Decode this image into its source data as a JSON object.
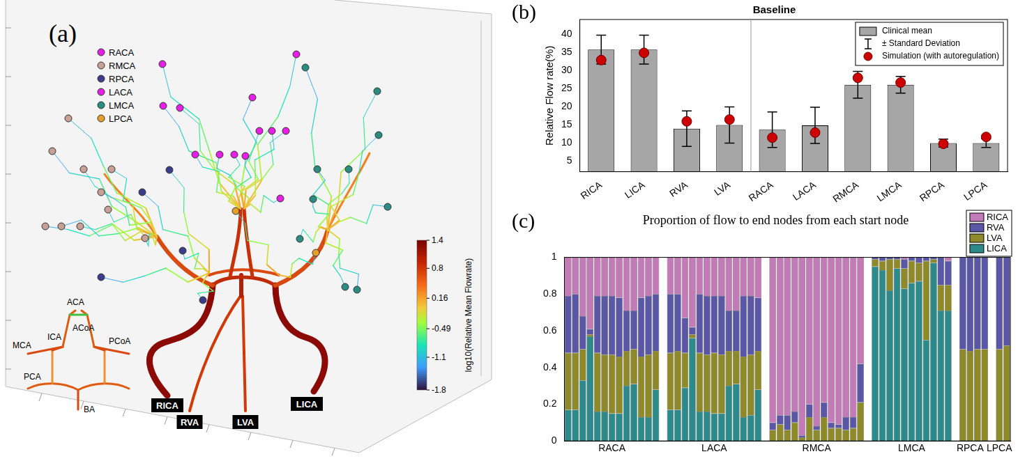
{
  "diagram": {
    "panel_label": "(a)",
    "legend": [
      {
        "name": "RACA",
        "color": "#e61ee6"
      },
      {
        "name": "RMCA",
        "color": "#c8a096"
      },
      {
        "name": "RPCA",
        "color": "#3c3c8c"
      },
      {
        "name": "LACA",
        "color": "#e61ee6"
      },
      {
        "name": "LMCA",
        "color": "#2a8c82"
      },
      {
        "name": "LPCA",
        "color": "#e6a02a"
      }
    ],
    "inlets": [
      "RICA",
      "RVA",
      "LVA",
      "LICA"
    ],
    "schematic_labels": [
      "ACA",
      "ACoA",
      "MCA",
      "ICA",
      "PCoA",
      "PCA",
      "BA"
    ],
    "colorbar": {
      "label": "log10(Relative Mean Flowrate)",
      "range": [
        -1.8,
        1.4
      ],
      "ticks": [
        1.4,
        0.8,
        0.16,
        -0.49,
        -1.1,
        -1.8
      ]
    }
  },
  "chart_data": [
    {
      "type": "bar",
      "panel_label": "(b)",
      "title": "Baseline",
      "y_label": "Relative Flow rate(%)",
      "categories": [
        "RICA",
        "LICA",
        "RVA",
        "LVA",
        "RACA",
        "LACA",
        "RMCA",
        "LMCA",
        "RPCA",
        "LPCA"
      ],
      "series": [
        {
          "name": "Clinical mean",
          "type": "bar",
          "color": "#a6a6a6",
          "values": [
            35.7,
            35.7,
            13.9,
            14.9,
            13.6,
            14.8,
            26.0,
            26.0,
            9.9,
            9.9
          ],
          "error_name": "± Standard Deviation",
          "errors": [
            4.0,
            4.0,
            4.9,
            5.0,
            4.9,
            5.0,
            3.7,
            2.3,
            1.1,
            1.2
          ]
        },
        {
          "name": "Simulation (with autoregulation)",
          "type": "scatter",
          "marker": "circle",
          "color": "#cc0000",
          "values": [
            32.8,
            34.8,
            15.9,
            16.4,
            11.4,
            12.8,
            27.9,
            26.6,
            9.7,
            11.6
          ]
        }
      ],
      "ylim": [
        2,
        44
      ],
      "yticks": [
        5,
        10,
        15,
        20,
        25,
        30,
        35,
        40
      ],
      "grid": false,
      "legend": "upper right"
    },
    {
      "type": "bar",
      "panel_label": "(c)",
      "title": "Proportion of flow to end nodes from each start node",
      "stacked": true,
      "categories": [
        "RACA",
        "LACA",
        "RMCA",
        "LMCA",
        "RPCA",
        "LPCA"
      ],
      "series": [
        {
          "name": "RICA",
          "color": "#c27bb6",
          "values": [
            [
              0.21,
              0.2,
              0.32,
              0.39,
              0.21,
              0.21,
              0.21,
              0.22,
              0.29,
              0.29,
              0.22,
              0.21,
              0.2
            ],
            [
              0.2,
              0.2,
              0.33,
              0.38,
              0.2,
              0.21,
              0.21,
              0.21,
              0.29,
              0.29,
              0.21,
              0.21,
              0.22
            ],
            [
              0.9,
              0.86,
              0.86,
              0.84,
              0.97,
              0.8,
              0.92,
              0.79,
              0.9,
              0.91,
              0.87,
              0.87,
              0.58
            ],
            [
              0,
              0,
              0,
              0,
              0.01,
              0,
              0,
              0,
              0,
              0,
              0.02
            ],
            [
              0,
              0,
              0,
              0
            ],
            [
              0,
              0
            ]
          ]
        },
        {
          "name": "RVA",
          "color": "#5957a6",
          "values": [
            [
              0.31,
              0.32,
              0.18,
              0.03,
              0.31,
              0.32,
              0.32,
              0.32,
              0.22,
              0.21,
              0.32,
              0.32,
              0.31
            ],
            [
              0.32,
              0.31,
              0.19,
              0.04,
              0.32,
              0.32,
              0.31,
              0.32,
              0.22,
              0.22,
              0.33,
              0.32,
              0.29
            ],
            [
              0.04,
              0.05,
              0.08,
              0.06,
              0.01,
              0.07,
              0.02,
              0.08,
              0.03,
              0.02,
              0.07,
              0.06,
              0.21
            ],
            [
              0.01,
              0.02,
              0.01,
              0.01,
              0.05,
              0.02,
              0.03,
              0.02,
              0.01,
              0.15,
              0.13
            ],
            [
              0.5,
              0.51,
              0.5,
              0.5
            ],
            [
              0.5,
              0.48
            ]
          ]
        },
        {
          "name": "LVA",
          "color": "#8e8a2a",
          "values": [
            [
              0.31,
              0.31,
              0.17,
              0.01,
              0.32,
              0.31,
              0.32,
              0.31,
              0.19,
              0.19,
              0.33,
              0.34,
              0.21
            ],
            [
              0.31,
              0.32,
              0.19,
              0.02,
              0.32,
              0.31,
              0.33,
              0.32,
              0.19,
              0.18,
              0.33,
              0.33,
              0.21
            ],
            [
              0.06,
              0.09,
              0.06,
              0.1,
              0.02,
              0.13,
              0.06,
              0.13,
              0.07,
              0.07,
              0.06,
              0.07,
              0.21
            ],
            [
              0.04,
              0.05,
              0.17,
              0.05,
              0.11,
              0.12,
              0.1,
              0.43,
              0.02,
              0.14,
              0.14
            ],
            [
              0.5,
              0.49,
              0.5,
              0.5
            ],
            [
              0.5,
              0.52
            ]
          ]
        },
        {
          "name": "LICA",
          "color": "#2c8a8a",
          "values": [
            [
              0.17,
              0.17,
              0.33,
              0.57,
              0.16,
              0.16,
              0.15,
              0.15,
              0.3,
              0.31,
              0.13,
              0.13,
              0.28
            ],
            [
              0.17,
              0.17,
              0.29,
              0.56,
              0.16,
              0.16,
              0.15,
              0.15,
              0.3,
              0.31,
              0.13,
              0.14,
              0.28
            ],
            [
              0,
              0,
              0,
              0,
              0,
              0,
              0,
              0,
              0,
              0,
              0,
              0,
              0
            ],
            [
              0.95,
              0.93,
              0.82,
              0.94,
              0.83,
              0.86,
              0.87,
              0.55,
              0.97,
              0.71,
              0.71
            ],
            [
              0,
              0,
              0,
              0
            ],
            [
              0,
              0
            ]
          ]
        }
      ],
      "ylim": [
        0,
        1
      ],
      "yticks": [
        0,
        0.2,
        0.4,
        0.6,
        0.8,
        1
      ],
      "grid": false,
      "legend": "upper right"
    }
  ]
}
